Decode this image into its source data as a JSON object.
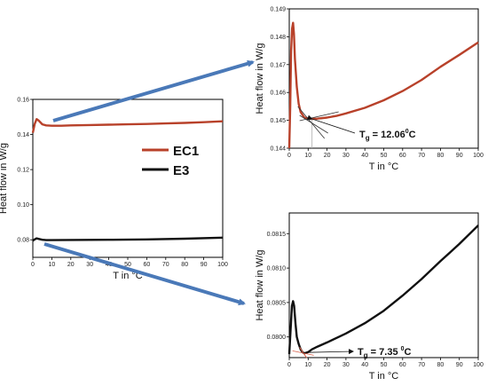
{
  "colors": {
    "ec1": "#b8412a",
    "e3": "#111111",
    "arrow": "#4a79b8",
    "tangent": "#333333",
    "guide": "#aaaaaa",
    "marker": "#d9604a"
  },
  "chart_data": [
    {
      "id": "main",
      "type": "line",
      "xlabel": "T in °C",
      "ylabel": "Heat flow in W/g",
      "xlim": [
        0,
        100
      ],
      "ylim": [
        0.07,
        0.16
      ],
      "xticks": [
        0,
        10,
        20,
        30,
        40,
        50,
        60,
        70,
        80,
        90,
        100
      ],
      "yticks": [
        0.08,
        0.1,
        0.12,
        0.14,
        0.16
      ],
      "ytick_labels": [
        "0.08",
        "0.10",
        "0.12",
        "0.14",
        "0.16"
      ],
      "grid": false,
      "legend": "center-right",
      "series": [
        {
          "name": "EC1",
          "color": "#b8412a",
          "x": [
            0,
            1,
            2,
            3,
            5,
            7,
            10,
            15,
            20,
            30,
            40,
            50,
            60,
            70,
            80,
            90,
            100
          ],
          "y": [
            0.141,
            0.146,
            0.1488,
            0.148,
            0.1458,
            0.1452,
            0.145,
            0.145,
            0.1452,
            0.1454,
            0.1456,
            0.1458,
            0.146,
            0.1463,
            0.1466,
            0.147,
            0.1475
          ]
        },
        {
          "name": "E3",
          "color": "#111111",
          "x": [
            0,
            1,
            2,
            3,
            5,
            7,
            10,
            20,
            40,
            60,
            80,
            100
          ],
          "y": [
            0.0795,
            0.0802,
            0.0808,
            0.0805,
            0.08,
            0.0798,
            0.0798,
            0.0799,
            0.08,
            0.0802,
            0.0806,
            0.0812
          ]
        }
      ]
    },
    {
      "id": "ec1-zoom",
      "type": "line",
      "xlabel": "T in °C",
      "ylabel": "Heat flow in W/g",
      "xlim": [
        0,
        100
      ],
      "ylim": [
        0.144,
        0.149
      ],
      "xticks": [
        0,
        10,
        20,
        30,
        40,
        50,
        60,
        70,
        80,
        90,
        100
      ],
      "yticks": [
        0.144,
        0.145,
        0.146,
        0.147,
        0.148,
        0.149
      ],
      "ytick_labels": [
        "0.144",
        "0.145",
        "0.146",
        "0.147",
        "0.148",
        "0.149"
      ],
      "grid": false,
      "tg_x": 12.06,
      "annotation_value": "12.06",
      "series": [
        {
          "name": "EC1",
          "color": "#b8412a",
          "x": [
            0,
            0.5,
            1,
            1.5,
            2,
            2.5,
            3,
            4,
            5,
            6,
            7,
            8,
            10,
            12,
            15,
            20,
            25,
            30,
            40,
            50,
            60,
            70,
            80,
            90,
            100
          ],
          "y": [
            0.144,
            0.1455,
            0.1475,
            0.1483,
            0.1485,
            0.1481,
            0.1472,
            0.1462,
            0.1456,
            0.1453,
            0.1452,
            0.1451,
            0.14507,
            0.14505,
            0.14506,
            0.1451,
            0.14516,
            0.14525,
            0.14545,
            0.14572,
            0.14605,
            0.14645,
            0.14692,
            0.14735,
            0.1478
          ]
        }
      ]
    },
    {
      "id": "e3-zoom",
      "type": "line",
      "xlabel": "T in °C",
      "ylabel": "Heat flow in W/g",
      "xlim": [
        0,
        100
      ],
      "ylim": [
        0.0797,
        0.0818
      ],
      "xticks": [
        0,
        10,
        20,
        30,
        40,
        50,
        60,
        70,
        80,
        90,
        100
      ],
      "yticks": [
        0.08,
        0.0805,
        0.081,
        0.0815
      ],
      "ytick_labels": [
        "0.0800",
        "0.0805",
        "0.0810",
        "0.0815"
      ],
      "grid": false,
      "tg_x": 7.35,
      "annotation_value": "7.35",
      "series": [
        {
          "name": "E3",
          "color": "#111111",
          "x": [
            0,
            0.7,
            1.4,
            2,
            2.6,
            3.3,
            4,
            5,
            6,
            7,
            8,
            10,
            12,
            15,
            20,
            30,
            40,
            50,
            60,
            70,
            80,
            90,
            100
          ],
          "y": [
            0.07975,
            0.0801,
            0.08045,
            0.08052,
            0.08045,
            0.0802,
            0.08,
            0.0799,
            0.07982,
            0.07978,
            0.07976,
            0.07978,
            0.07982,
            0.07986,
            0.07992,
            0.08005,
            0.0802,
            0.08038,
            0.0806,
            0.08084,
            0.0811,
            0.08135,
            0.08162
          ]
        }
      ]
    }
  ],
  "legend": {
    "ec1": "EC1",
    "e3": "E3"
  },
  "annotations": {
    "ec1_prefix": "T",
    "ec1_sub": "g",
    "ec1_suffix": " = 12.06",
    "ec1_sup": "0",
    "ec1_unit": "C",
    "e3_prefix": "T",
    "e3_sub": "g",
    "e3_suffix": " = 7.35 ",
    "e3_sup": "0",
    "e3_unit": "C"
  }
}
